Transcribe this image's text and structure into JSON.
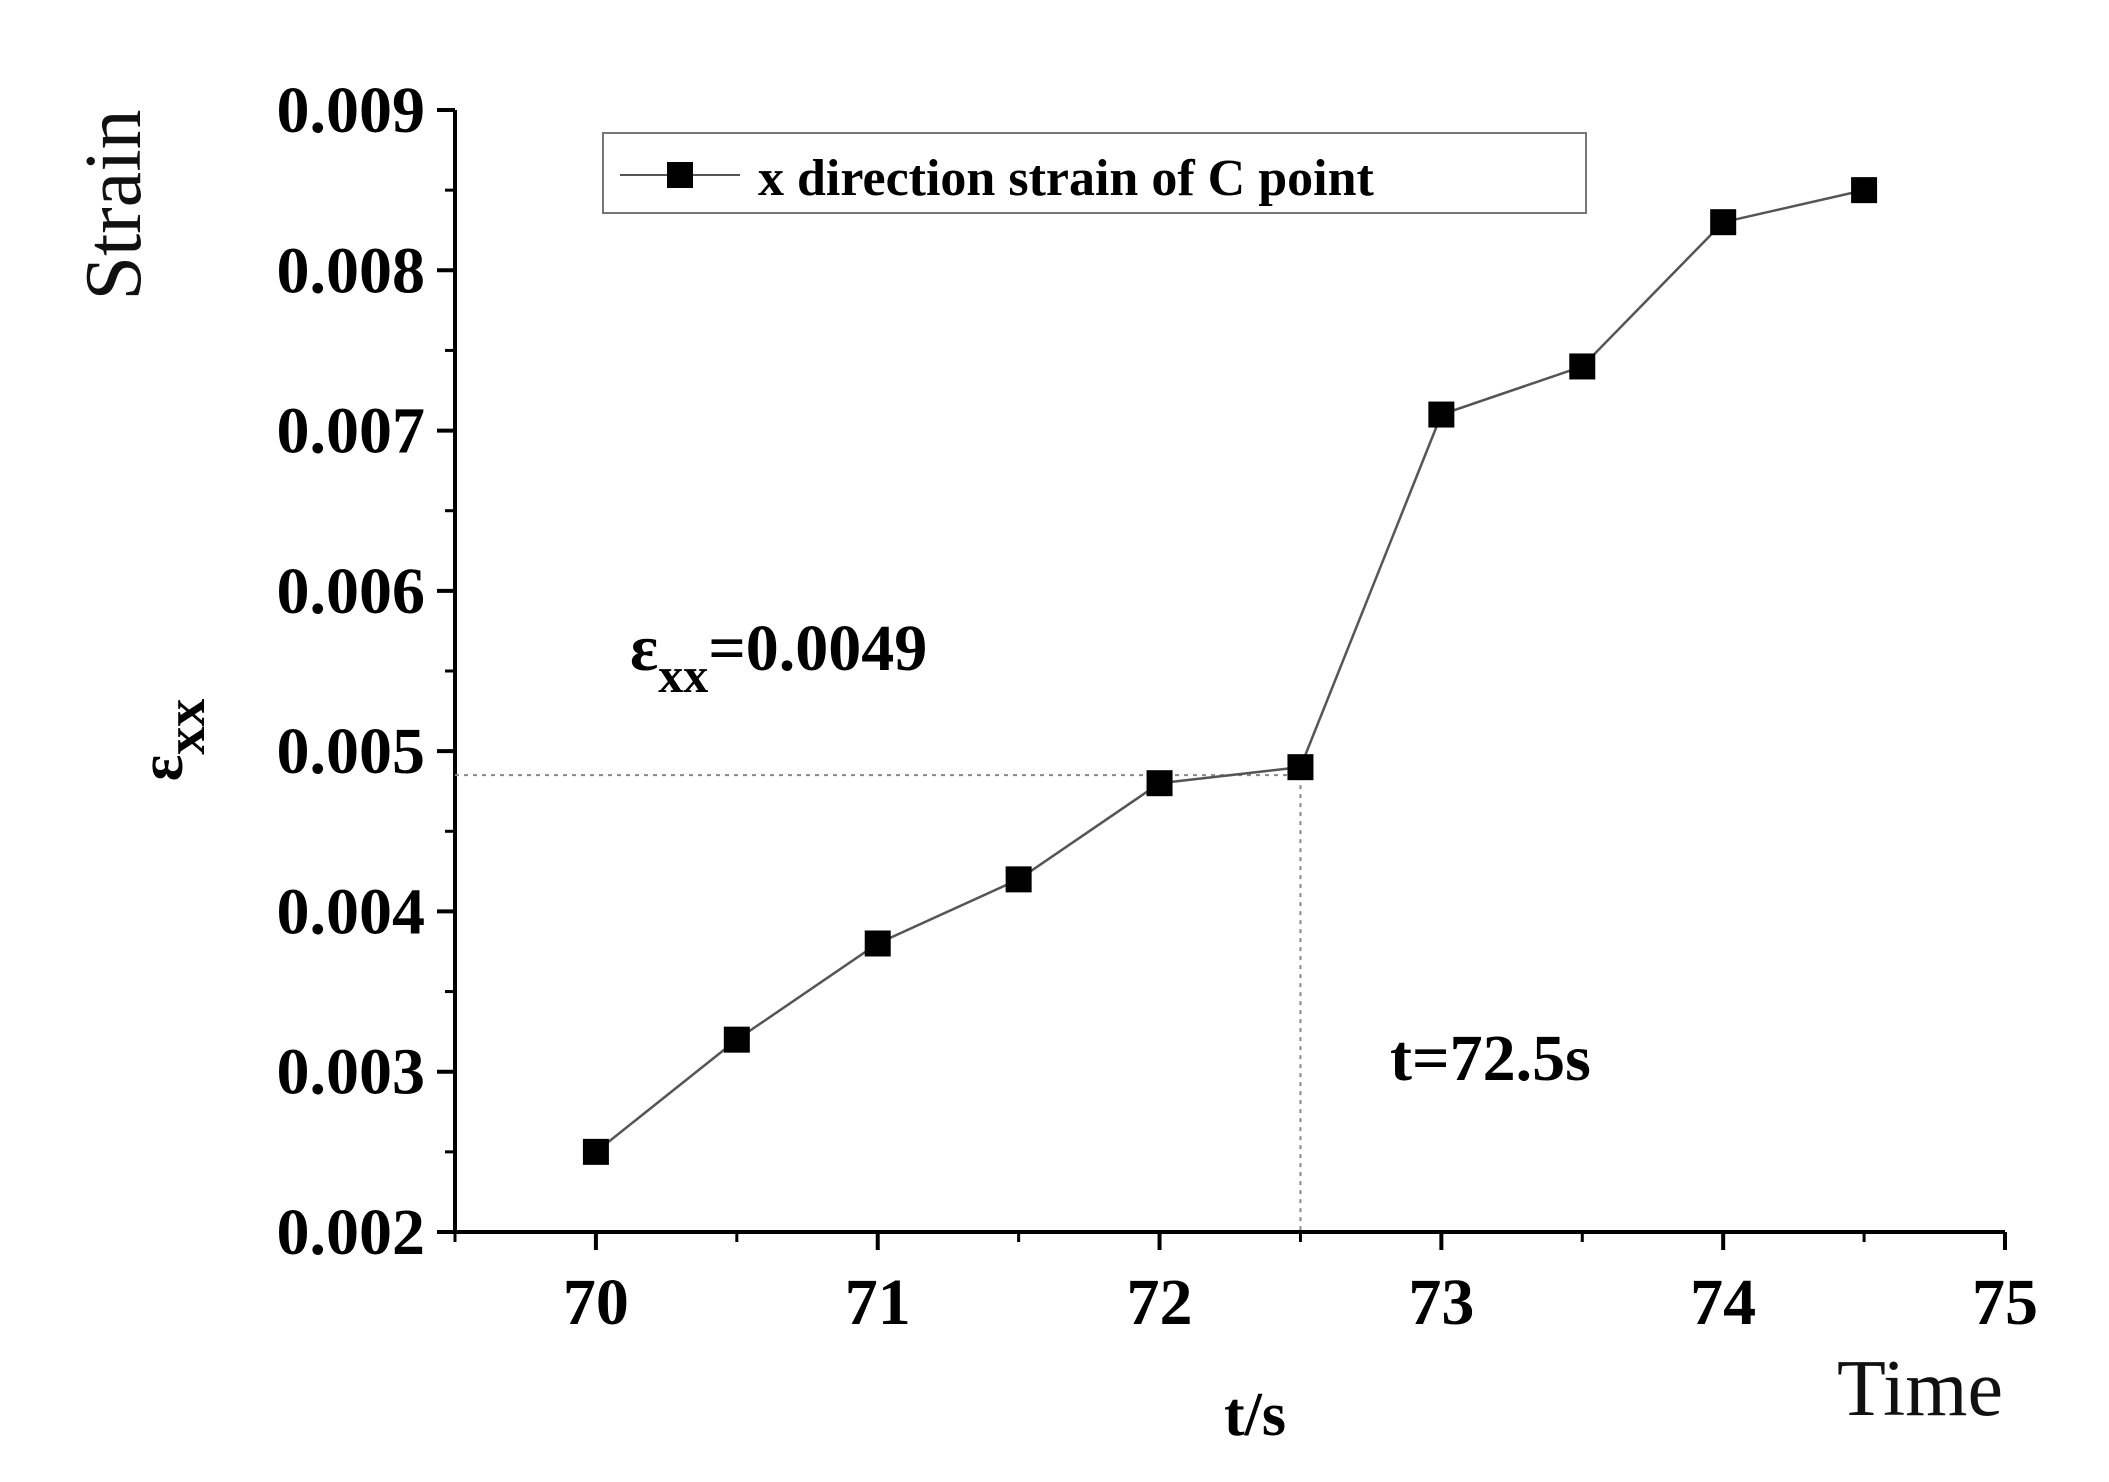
{
  "chart_data": {
    "type": "line",
    "x_tick_labels": [
      "70",
      "71",
      "72",
      "73",
      "74",
      "75"
    ],
    "y_tick_labels": [
      "0.002",
      "0.003",
      "0.004",
      "0.005",
      "0.006",
      "0.007",
      "0.008",
      "0.009"
    ],
    "xlim": [
      69.5,
      75
    ],
    "ylim": [
      0.002,
      0.009
    ],
    "x_ticks": [
      70,
      71,
      72,
      73,
      74,
      75
    ],
    "y_ticks": [
      0.002,
      0.003,
      0.004,
      0.005,
      0.006,
      0.007,
      0.008,
      0.009
    ],
    "xlabel": "t/s",
    "xlabel_secondary": "Time",
    "ylabel_symbol": "ε",
    "ylabel_subscript": "xx",
    "ylabel_secondary": "Strain",
    "legend_position": "top-left",
    "grid": false,
    "series": [
      {
        "name": "x direction strain of C point",
        "marker": "square",
        "color": "#000000",
        "line_color": "#555555",
        "x": [
          70,
          70.5,
          71,
          71.5,
          72,
          72.5,
          73,
          73.5,
          74,
          74.5
        ],
        "y": [
          0.0025,
          0.0032,
          0.0038,
          0.0042,
          0.0048,
          0.0049,
          0.0071,
          0.0074,
          0.0083,
          0.0085
        ]
      }
    ],
    "annotations": {
      "strain_symbol": "ε",
      "strain_subscript": "xx",
      "strain_value": "=0.0049",
      "time_text": "t=72.5s",
      "crosshair_x": 72.5,
      "crosshair_y": 0.0049
    }
  }
}
